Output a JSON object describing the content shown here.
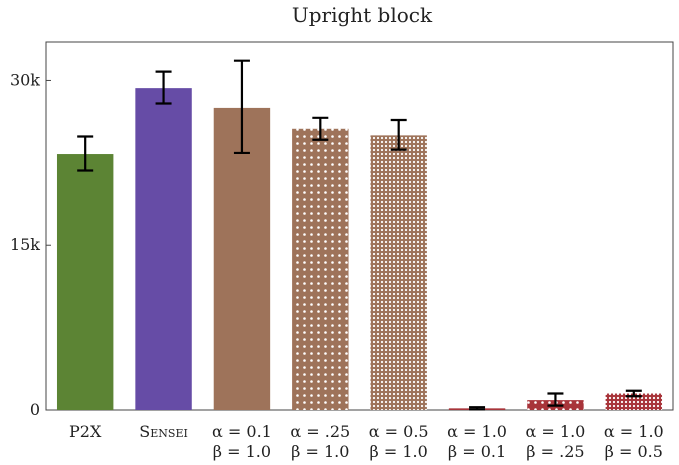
{
  "chart_data": {
    "type": "bar",
    "title": "Upright block",
    "xlabel": "",
    "ylabel": "",
    "ylim": [
      0,
      33500
    ],
    "y_ticks": [
      {
        "value": 0,
        "label": "0"
      },
      {
        "value": 15000,
        "label": "15k"
      },
      {
        "value": 30000,
        "label": "30k"
      }
    ],
    "grid": false,
    "legend": "none",
    "categories": [
      {
        "line1": "P2X",
        "line2": ""
      },
      {
        "line1": "Sensei",
        "line2": "",
        "small_caps": true
      },
      {
        "line1": "α = 0.1",
        "line2": "β = 1.0"
      },
      {
        "line1": "α = .25",
        "line2": "β = 1.0"
      },
      {
        "line1": "α = 0.5",
        "line2": "β = 1.0"
      },
      {
        "line1": "α = 1.0",
        "line2": "β = 0.1"
      },
      {
        "line1": "α = 1.0",
        "line2": "β = .25"
      },
      {
        "line1": "α = 1.0",
        "line2": "β = 0.5"
      }
    ],
    "values": [
      23300,
      29300,
      27500,
      25600,
      25000,
      150,
      900,
      1500
    ],
    "error_low": [
      21800,
      27900,
      23400,
      24600,
      23700,
      50,
      400,
      1250
    ],
    "error_high": [
      24900,
      30800,
      31800,
      26600,
      26400,
      250,
      1500,
      1750
    ],
    "colors": [
      "#5c8434",
      "#664ca6",
      "#9e735a",
      "#9e735a",
      "#9e735a",
      "#a8343a",
      "#a8343a",
      "#a8343a"
    ],
    "fills": [
      "solid",
      "solid",
      "solid",
      "dots",
      "dense-dots",
      "solid",
      "dots",
      "dense-dots"
    ]
  }
}
